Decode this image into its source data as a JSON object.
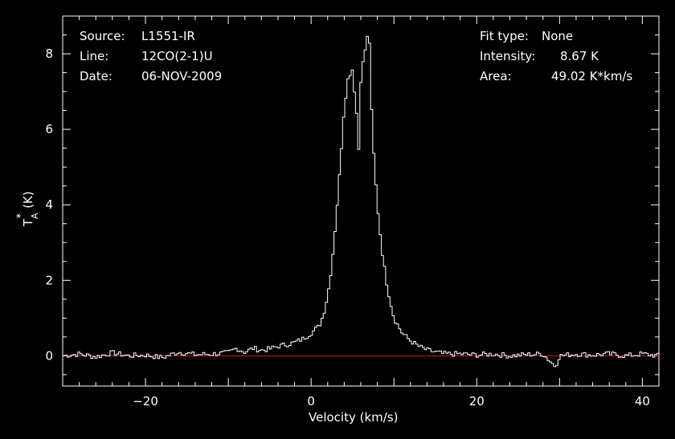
{
  "colors": {
    "background": "#000000",
    "foreground": "#ffffff",
    "baseline": "#d01c1c"
  },
  "info_left": [
    {
      "key": "Source:",
      "value": "L1551-IR"
    },
    {
      "key": "Line:",
      "value": "12CO(2-1)U"
    },
    {
      "key": "Date:",
      "value": "06-NOV-2009"
    }
  ],
  "info_right": [
    {
      "key": "Fit type:",
      "value": "None"
    },
    {
      "key": "Intensity:",
      "value": "8.67 K"
    },
    {
      "key": "Area:",
      "value": "49.02 K*km/s"
    }
  ],
  "chart_data": {
    "type": "line",
    "style": "step histogram",
    "xlabel": "Velocity (km/s)",
    "ylabel_main": "T",
    "ylabel_sup": "*",
    "ylabel_sub": "A",
    "ylabel_unit": "(K)",
    "xlim": [
      -30,
      42
    ],
    "ylim": [
      -0.8,
      9.0
    ],
    "xticks": [
      -20,
      0,
      20,
      40
    ],
    "yticks": [
      0,
      2,
      4,
      6,
      8
    ],
    "x_tick_labels": [
      "−20",
      "0",
      "20",
      "40"
    ],
    "y_tick_labels": [
      "0",
      "2",
      "4",
      "6",
      "8"
    ],
    "baseline_y": 0,
    "grid": false,
    "series": [
      {
        "x": [
          -30,
          -28,
          -26,
          -24,
          -22,
          -20,
          -18,
          -16,
          -14,
          -12,
          -10,
          -9,
          -8,
          -7,
          -6,
          -5,
          -4,
          -3,
          -2,
          -1,
          0,
          1,
          1.5,
          2,
          2.5,
          3,
          3.5,
          4,
          4.5,
          5,
          5.5,
          5.8,
          6,
          6.3,
          6.6,
          7,
          7.3,
          7.6,
          8,
          8.5,
          9,
          9.5,
          10,
          11,
          12,
          13,
          14,
          15,
          16,
          18,
          20,
          22,
          24,
          26,
          28,
          29.5,
          30,
          32,
          34,
          36,
          38,
          40,
          42
        ],
        "values": [
          0.0,
          0.05,
          -0.03,
          0.08,
          0.0,
          0.02,
          -0.05,
          0.1,
          0.03,
          0.05,
          0.08,
          0.2,
          0.1,
          0.2,
          0.15,
          0.18,
          0.25,
          0.3,
          0.35,
          0.45,
          0.6,
          0.8,
          1.1,
          1.6,
          2.4,
          3.6,
          5.0,
          6.6,
          7.4,
          7.6,
          6.4,
          5.3,
          7.3,
          7.8,
          8.2,
          8.67,
          6.5,
          5.2,
          4.0,
          2.9,
          2.1,
          1.5,
          1.0,
          0.6,
          0.4,
          0.25,
          0.15,
          0.1,
          0.05,
          0.05,
          0.02,
          0.05,
          0.0,
          0.03,
          0.05,
          -0.28,
          0.0,
          0.05,
          0.02,
          0.05,
          0.0,
          0.05,
          0.0
        ]
      }
    ]
  }
}
